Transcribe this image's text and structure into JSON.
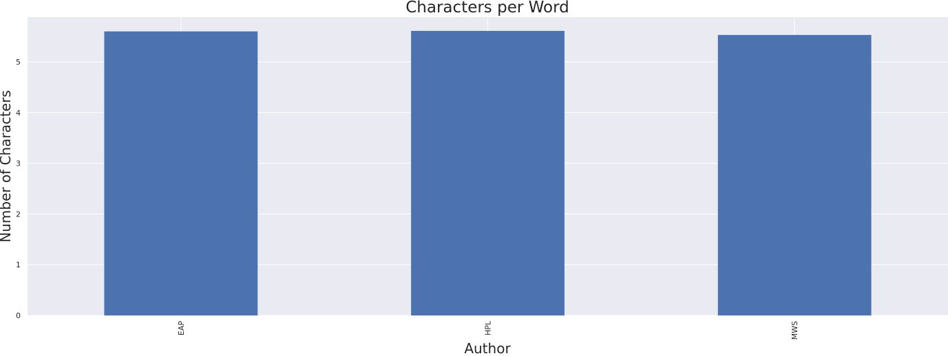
{
  "chart_data": {
    "type": "bar",
    "title": "Characters per Word",
    "xlabel": "Author",
    "ylabel": "Number of Characters",
    "categories": [
      "EAP",
      "HPL",
      "MWS"
    ],
    "values": [
      5.6,
      5.61,
      5.53
    ],
    "ylim": [
      0,
      5.88
    ],
    "yticks": [
      0,
      1,
      2,
      3,
      4,
      5
    ],
    "grid": true,
    "legend": "none",
    "colors": {
      "bar": "#4c72b0",
      "plot_background": "#eaeaf2",
      "grid": "#ffffff",
      "text": "#262626"
    }
  }
}
